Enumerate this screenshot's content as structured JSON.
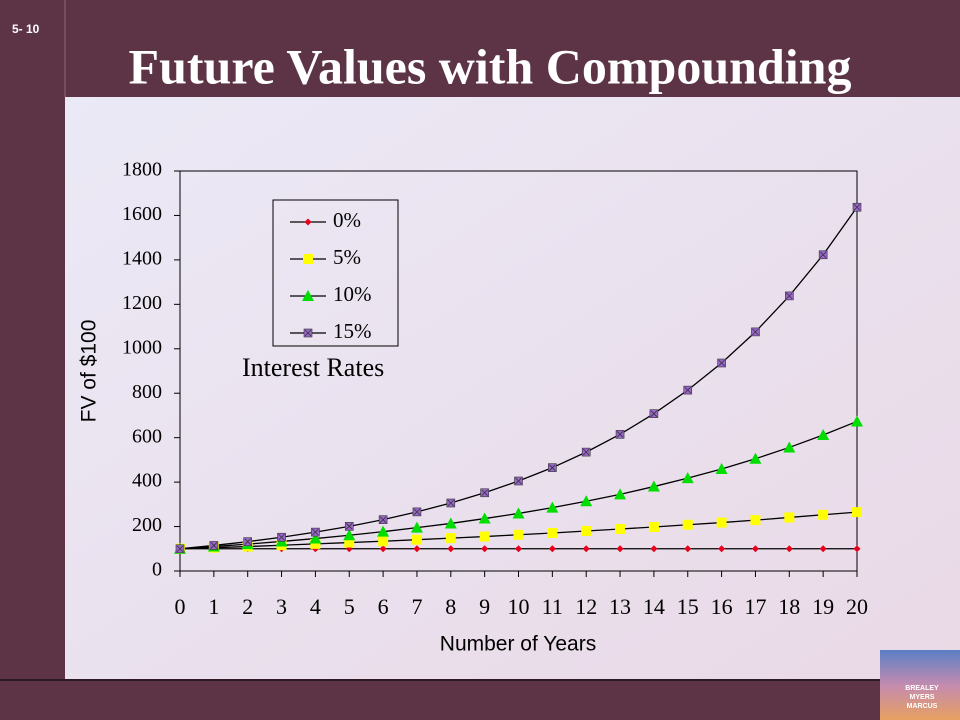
{
  "slide_number": "5- 10",
  "logo_text": [
    "BREALEY",
    "MYERS",
    "MARCUS"
  ],
  "chart_data": {
    "type": "line",
    "title": "Future Values with Compounding",
    "x_label": "Number of Years",
    "y_label": "FV of $100",
    "legend_title": "Interest Rates",
    "x": [
      0,
      1,
      2,
      3,
      4,
      5,
      6,
      7,
      8,
      9,
      10,
      11,
      12,
      13,
      14,
      15,
      16,
      17,
      18,
      19,
      20
    ],
    "xlim": [
      0,
      20
    ],
    "xticks": [
      0,
      1,
      2,
      3,
      4,
      5,
      6,
      7,
      8,
      9,
      10,
      11,
      12,
      13,
      14,
      15,
      16,
      17,
      18,
      19,
      20
    ],
    "ylim": [
      0,
      1800
    ],
    "yticks": [
      0,
      200,
      400,
      600,
      800,
      1000,
      1200,
      1400,
      1600,
      1800
    ],
    "grid": false,
    "legend_position": "upper left",
    "series": [
      {
        "name": "0%",
        "color": "#e8001c",
        "marker": "diamond",
        "values": [
          100,
          100,
          100,
          100,
          100,
          100,
          100,
          100,
          100,
          100,
          100,
          100,
          100,
          100,
          100,
          100,
          100,
          100,
          100,
          100,
          100
        ]
      },
      {
        "name": "5%",
        "color": "#ffff00",
        "marker": "square",
        "values": [
          100,
          105,
          110,
          116,
          122,
          128,
          134,
          141,
          148,
          155,
          163,
          171,
          180,
          189,
          198,
          208,
          218,
          229,
          241,
          253,
          265
        ]
      },
      {
        "name": "10%",
        "color": "#00dd00",
        "marker": "triangle",
        "values": [
          100,
          110,
          121,
          133,
          146,
          161,
          177,
          195,
          214,
          236,
          259,
          285,
          314,
          345,
          380,
          418,
          459,
          505,
          556,
          612,
          673
        ]
      },
      {
        "name": "15%",
        "color": "#9966cc",
        "marker": "square-x",
        "values": [
          100,
          115,
          132,
          152,
          175,
          201,
          231,
          266,
          306,
          352,
          405,
          465,
          535,
          615,
          708,
          814,
          936,
          1076,
          1238,
          1423,
          1637
        ]
      }
    ]
  }
}
